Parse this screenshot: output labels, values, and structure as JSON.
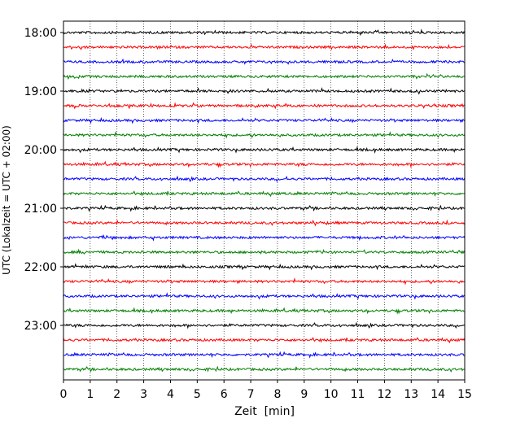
{
  "chart_data": {
    "type": "line",
    "title": "",
    "xlabel": "Zeit  [min]",
    "ylabel": "UTC (Lokalzeit = UTC + 02:00)",
    "xlim": [
      0,
      15
    ],
    "x_ticks": [
      "0",
      "1",
      "2",
      "3",
      "4",
      "5",
      "6",
      "7",
      "8",
      "9",
      "10",
      "11",
      "12",
      "13",
      "14",
      "15"
    ],
    "grid": "vertical dotted at each minute",
    "y_ticks": [
      "18:00",
      "19:00",
      "20:00",
      "21:00",
      "22:00",
      "23:00"
    ],
    "trace_interval_min": 15,
    "start_time": "18:00",
    "trace_colors": [
      "#000000",
      "#ff0000",
      "#0000ff",
      "#008000"
    ],
    "traces": [
      {
        "start": "18:00",
        "color": "#000000"
      },
      {
        "start": "18:15",
        "color": "#ff0000"
      },
      {
        "start": "18:30",
        "color": "#0000ff"
      },
      {
        "start": "18:45",
        "color": "#008000"
      },
      {
        "start": "19:00",
        "color": "#000000"
      },
      {
        "start": "19:15",
        "color": "#ff0000"
      },
      {
        "start": "19:30",
        "color": "#0000ff"
      },
      {
        "start": "19:45",
        "color": "#008000"
      },
      {
        "start": "20:00",
        "color": "#000000"
      },
      {
        "start": "20:15",
        "color": "#ff0000"
      },
      {
        "start": "20:30",
        "color": "#0000ff"
      },
      {
        "start": "20:45",
        "color": "#008000"
      },
      {
        "start": "21:00",
        "color": "#000000"
      },
      {
        "start": "21:15",
        "color": "#ff0000"
      },
      {
        "start": "21:30",
        "color": "#0000ff"
      },
      {
        "start": "21:45",
        "color": "#008000"
      },
      {
        "start": "22:00",
        "color": "#000000"
      },
      {
        "start": "22:15",
        "color": "#ff0000"
      },
      {
        "start": "22:30",
        "color": "#0000ff"
      },
      {
        "start": "22:45",
        "color": "#008000"
      },
      {
        "start": "23:00",
        "color": "#000000"
      },
      {
        "start": "23:15",
        "color": "#ff0000"
      },
      {
        "start": "23:30",
        "color": "#0000ff"
      },
      {
        "start": "23:45",
        "color": "#008000"
      }
    ]
  }
}
